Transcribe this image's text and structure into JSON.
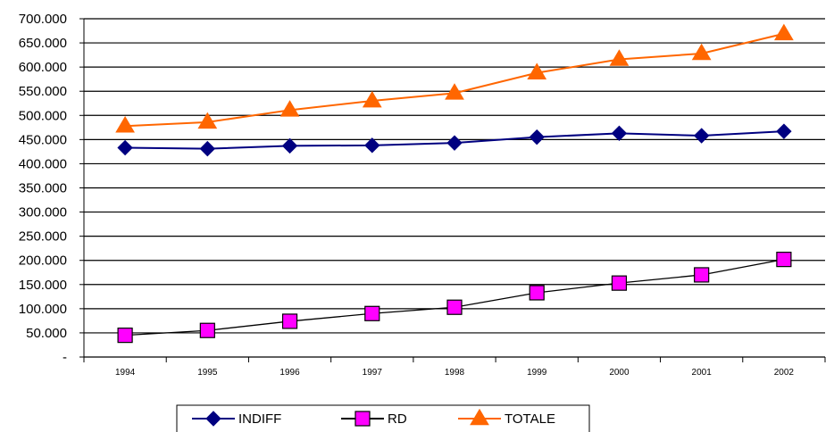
{
  "chart_data": {
    "type": "line",
    "title": "",
    "xlabel": "",
    "ylabel": "",
    "categories": [
      "1994",
      "1995",
      "1996",
      "1997",
      "1998",
      "1999",
      "2000",
      "2001",
      "2002"
    ],
    "y_tick_labels": [
      "-",
      "50.000",
      "100.000",
      "150.000",
      "200.000",
      "250.000",
      "300.000",
      "350.000",
      "400.000",
      "450.000",
      "500.000",
      "550.000",
      "600.000",
      "650.000",
      "700.000"
    ],
    "y_tick_values": [
      0,
      50000,
      100000,
      150000,
      200000,
      250000,
      300000,
      350000,
      400000,
      450000,
      500000,
      550000,
      600000,
      650000,
      700000
    ],
    "ylim": [
      0,
      700000
    ],
    "grid": "horizontal",
    "legend_position": "bottom",
    "series": [
      {
        "name": "INDIFF",
        "color": "#000080",
        "marker": "diamond",
        "values": [
          433000,
          431000,
          437000,
          438000,
          443000,
          455000,
          463000,
          458000,
          467000
        ]
      },
      {
        "name": "RD",
        "color": "#000000",
        "marker_fill": "#FF00FF",
        "marker": "square",
        "values": [
          45000,
          55000,
          74000,
          90000,
          103000,
          133000,
          153000,
          170000,
          202000
        ]
      },
      {
        "name": "TOTALE",
        "color": "#FF6600",
        "marker": "triangle",
        "values": [
          478000,
          486000,
          511000,
          530000,
          546000,
          588000,
          616000,
          628000,
          669000
        ]
      }
    ]
  }
}
